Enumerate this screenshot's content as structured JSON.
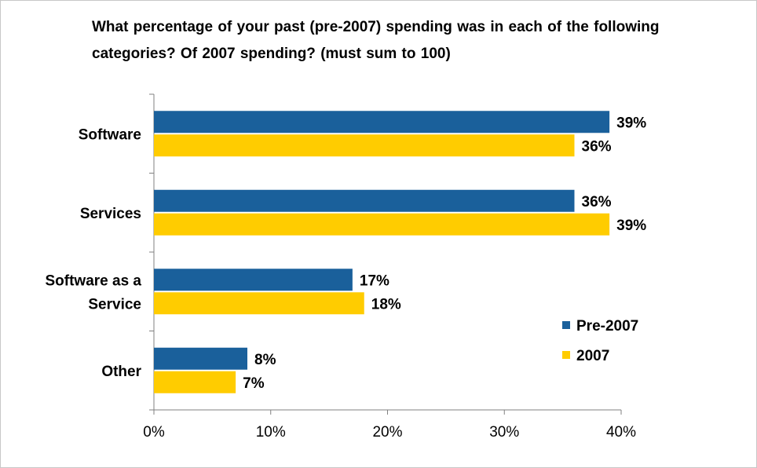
{
  "chart_data": {
    "type": "bar",
    "orientation": "horizontal",
    "title": "What percentage of your past (pre-2007) spending was in each of the following categories?  Of 2007 spending? (must sum to 100)",
    "categories": [
      "Software",
      "Services",
      "Software as a Service",
      "Other"
    ],
    "category_lines": [
      [
        "Software"
      ],
      [
        "Services"
      ],
      [
        "Software as a",
        "Service"
      ],
      [
        "Other"
      ]
    ],
    "series": [
      {
        "name": "Pre-2007",
        "values": [
          39,
          36,
          17,
          8
        ],
        "labels": [
          "39%",
          "36%",
          "17%",
          "8%"
        ],
        "color": "#1a609b"
      },
      {
        "name": "2007",
        "values": [
          36,
          39,
          18,
          7
        ],
        "labels": [
          "36%",
          "39%",
          "18%",
          "7%"
        ],
        "color": "#ffcc00"
      }
    ],
    "xlim": [
      0,
      40
    ],
    "xticks": [
      "0%",
      "10%",
      "20%",
      "30%",
      "40%"
    ],
    "grid": false,
    "legend_position": "right"
  }
}
